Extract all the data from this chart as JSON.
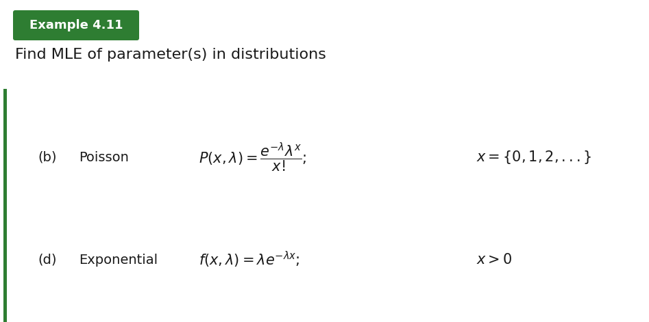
{
  "title_box_text": "Example 4.11",
  "title_box_bg": "#2e7d32",
  "title_box_text_color": "#ffffff",
  "subtitle_text": "Find MLE of parameter(s) in distributions",
  "subtitle_color": "#1a1a1a",
  "left_bar_color": "#2e7d32",
  "background_color": "#ffffff",
  "row_b_label": "(b)",
  "row_b_dist": "Poisson",
  "row_b_formula": "$P(x, \\lambda) = \\dfrac{e^{-\\lambda}\\lambda^x}{x!};$",
  "row_b_constraint": "$x = \\{0, 1, 2, ...\\}$",
  "row_d_label": "(d)",
  "row_d_dist": "Exponential",
  "row_d_formula": "$f(x, \\lambda) = \\lambda e^{-\\lambda x};$",
  "row_d_constraint": "$x > 0$",
  "font_size_title_box": 13,
  "font_size_subtitle": 16,
  "font_size_label": 14,
  "font_size_math": 15,
  "fig_width": 9.47,
  "fig_height": 4.71,
  "dpi": 100
}
